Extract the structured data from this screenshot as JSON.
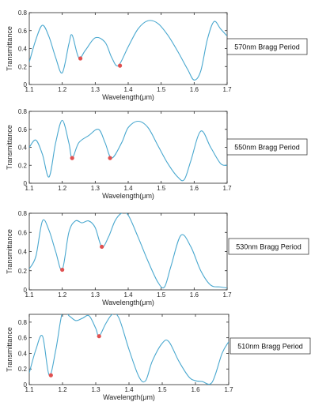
{
  "chart_data": [
    {
      "type": "line",
      "xlabel": "Wavelength(μm)",
      "ylabel": "Transmittance",
      "xlim": [
        1.1,
        1.7
      ],
      "ylim": [
        0,
        0.8
      ],
      "xticks": [
        "1.1",
        "1.2",
        "1.3",
        "1.4",
        "1.5",
        "1.6",
        "1.7"
      ],
      "yticks": [
        "0",
        "0.2",
        "0.4",
        "0.6",
        "0.8"
      ],
      "legend": "570nm Bragg Period",
      "line_color": "#4aa8cf",
      "marker_color": "#e05050",
      "x": [
        1.1,
        1.12,
        1.14,
        1.16,
        1.18,
        1.2,
        1.22,
        1.23,
        1.25,
        1.27,
        1.3,
        1.33,
        1.35,
        1.37,
        1.4,
        1.43,
        1.46,
        1.49,
        1.52,
        1.55,
        1.58,
        1.6,
        1.62,
        1.64,
        1.66,
        1.68,
        1.7
      ],
      "y": [
        0.25,
        0.5,
        0.66,
        0.53,
        0.3,
        0.13,
        0.45,
        0.55,
        0.3,
        0.38,
        0.52,
        0.47,
        0.3,
        0.21,
        0.42,
        0.62,
        0.71,
        0.68,
        0.55,
        0.37,
        0.17,
        0.05,
        0.15,
        0.5,
        0.7,
        0.62,
        0.54
      ],
      "markers": [
        {
          "x": 1.255,
          "y": 0.29
        },
        {
          "x": 1.375,
          "y": 0.21
        }
      ]
    },
    {
      "type": "line",
      "xlabel": "Wavelength(μm)",
      "ylabel": "Transmittance",
      "xlim": [
        1.1,
        1.7
      ],
      "ylim": [
        0,
        0.8
      ],
      "xticks": [
        "1.1",
        "1.2",
        "1.3",
        "1.4",
        "1.5",
        "1.6",
        "1.7"
      ],
      "yticks": [
        "0",
        "0.2",
        "0.4",
        "0.6",
        "0.8"
      ],
      "legend": "550nm Bragg Period",
      "line_color": "#4aa8cf",
      "marker_color": "#e05050",
      "x": [
        1.1,
        1.12,
        1.14,
        1.16,
        1.18,
        1.2,
        1.22,
        1.23,
        1.25,
        1.28,
        1.31,
        1.33,
        1.35,
        1.38,
        1.4,
        1.43,
        1.46,
        1.49,
        1.52,
        1.55,
        1.57,
        1.59,
        1.62,
        1.65,
        1.68,
        1.7
      ],
      "y": [
        0.4,
        0.48,
        0.32,
        0.07,
        0.45,
        0.7,
        0.45,
        0.28,
        0.45,
        0.53,
        0.6,
        0.45,
        0.28,
        0.45,
        0.62,
        0.69,
        0.62,
        0.42,
        0.22,
        0.07,
        0.04,
        0.25,
        0.58,
        0.4,
        0.22,
        0.2
      ],
      "markers": [
        {
          "x": 1.23,
          "y": 0.28
        },
        {
          "x": 1.345,
          "y": 0.28
        }
      ]
    },
    {
      "type": "line",
      "xlabel": "Wavelength(μm)",
      "ylabel": "Transmittance",
      "xlim": [
        1.1,
        1.7
      ],
      "ylim": [
        0,
        0.8
      ],
      "xticks": [
        "1.1",
        "1.2",
        "1.3",
        "1.4",
        "1.5",
        "1.6",
        "1.7"
      ],
      "yticks": [
        "0",
        "0.2",
        "0.4",
        "0.6",
        "0.8"
      ],
      "legend": "530nm Bragg Period",
      "line_color": "#4aa8cf",
      "marker_color": "#e05050",
      "x": [
        1.1,
        1.12,
        1.14,
        1.16,
        1.18,
        1.2,
        1.22,
        1.24,
        1.26,
        1.28,
        1.3,
        1.32,
        1.34,
        1.36,
        1.38,
        1.4,
        1.43,
        1.46,
        1.49,
        1.51,
        1.53,
        1.56,
        1.59,
        1.62,
        1.65,
        1.68,
        1.7
      ],
      "y": [
        0.22,
        0.35,
        0.72,
        0.62,
        0.4,
        0.21,
        0.6,
        0.72,
        0.7,
        0.72,
        0.65,
        0.45,
        0.55,
        0.72,
        0.8,
        0.78,
        0.55,
        0.3,
        0.08,
        0.03,
        0.25,
        0.57,
        0.45,
        0.2,
        0.05,
        0.03,
        0.02
      ],
      "markers": [
        {
          "x": 1.2,
          "y": 0.21
        },
        {
          "x": 1.32,
          "y": 0.45
        }
      ]
    },
    {
      "type": "line",
      "xlabel": "Wavelength(μm)",
      "ylabel": "Transmittance",
      "xlim": [
        1.1,
        1.7
      ],
      "ylim": [
        0,
        0.9
      ],
      "xticks": [
        "1.1",
        "1.2",
        "1.3",
        "1.4",
        "1.5",
        "1.6",
        "1.7"
      ],
      "yticks": [
        "0",
        "0.2",
        "0.4",
        "0.6",
        "0.8"
      ],
      "legend": "510nm Bragg Period",
      "line_color": "#4aa8cf",
      "marker_color": "#e05050",
      "x": [
        1.1,
        1.12,
        1.14,
        1.16,
        1.18,
        1.2,
        1.22,
        1.24,
        1.26,
        1.28,
        1.3,
        1.31,
        1.33,
        1.35,
        1.37,
        1.4,
        1.43,
        1.45,
        1.47,
        1.5,
        1.52,
        1.55,
        1.58,
        1.6,
        1.62,
        1.65,
        1.68,
        1.7
      ],
      "y": [
        0.15,
        0.45,
        0.62,
        0.12,
        0.45,
        0.93,
        0.88,
        0.82,
        0.85,
        0.88,
        0.72,
        0.62,
        0.78,
        0.9,
        0.85,
        0.45,
        0.1,
        0.05,
        0.3,
        0.53,
        0.55,
        0.3,
        0.1,
        0.05,
        0.04,
        0.03,
        0.4,
        0.55
      ],
      "markers": [
        {
          "x": 1.165,
          "y": 0.12
        },
        {
          "x": 1.31,
          "y": 0.62
        }
      ]
    }
  ]
}
